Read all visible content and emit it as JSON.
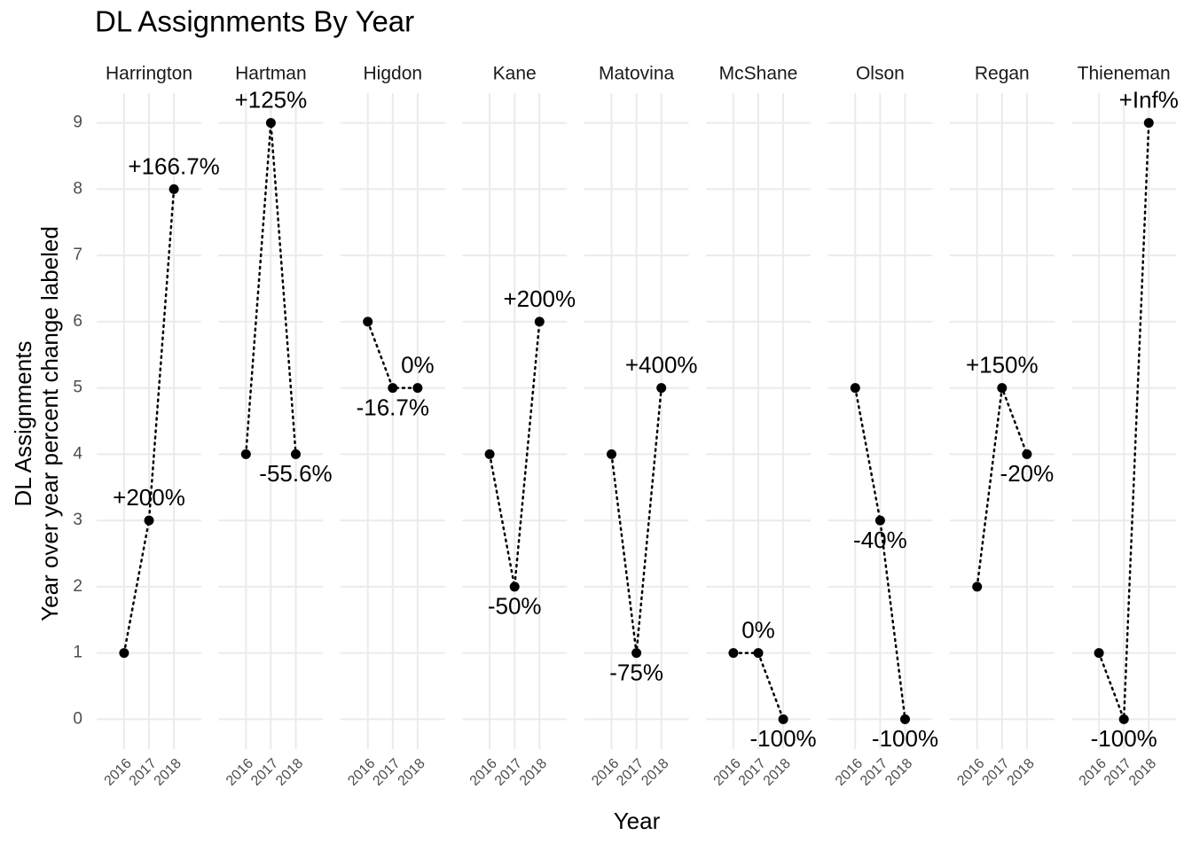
{
  "chart_data": {
    "type": "line",
    "title": "DL Assignments By Year",
    "x_label": "Year",
    "y_label": [
      "DL Assignments",
      "Year over year percent change labeled"
    ],
    "x": [
      2016,
      2017,
      2018
    ],
    "xlim": [
      2014.9,
      2019.1
    ],
    "xticks": [
      2016,
      2017,
      2018
    ],
    "ylim": [
      -0.45,
      9.45
    ],
    "yticks": [
      0,
      1,
      2,
      3,
      4,
      5,
      6,
      7,
      8,
      9
    ],
    "grid": true,
    "color": "#000000",
    "series": [
      {
        "name": "Harrington",
        "values": [
          1,
          3,
          8
        ],
        "change_labels": [
          null,
          "+200%",
          "+166.7%"
        ]
      },
      {
        "name": "Hartman",
        "values": [
          4,
          9,
          4
        ],
        "change_labels": [
          null,
          "+125%",
          "-55.6%"
        ]
      },
      {
        "name": "Higdon",
        "values": [
          6,
          5,
          5
        ],
        "change_labels": [
          null,
          "-16.7%",
          "0%"
        ]
      },
      {
        "name": "Kane",
        "values": [
          4,
          2,
          6
        ],
        "change_labels": [
          null,
          "-50%",
          "+200%"
        ]
      },
      {
        "name": "Matovina",
        "values": [
          4,
          1,
          5
        ],
        "change_labels": [
          null,
          "-75%",
          "+400%"
        ]
      },
      {
        "name": "McShane",
        "values": [
          1,
          1,
          0
        ],
        "change_labels": [
          null,
          "0%",
          "-100%"
        ]
      },
      {
        "name": "Olson",
        "values": [
          5,
          3,
          0
        ],
        "change_labels": [
          null,
          "-40%",
          "-100%"
        ]
      },
      {
        "name": "Regan",
        "values": [
          2,
          5,
          4
        ],
        "change_labels": [
          null,
          "+150%",
          "-20%"
        ]
      },
      {
        "name": "Thieneman",
        "values": [
          1,
          0,
          9
        ],
        "change_labels": [
          null,
          "-100%",
          "+Inf%"
        ]
      }
    ]
  }
}
